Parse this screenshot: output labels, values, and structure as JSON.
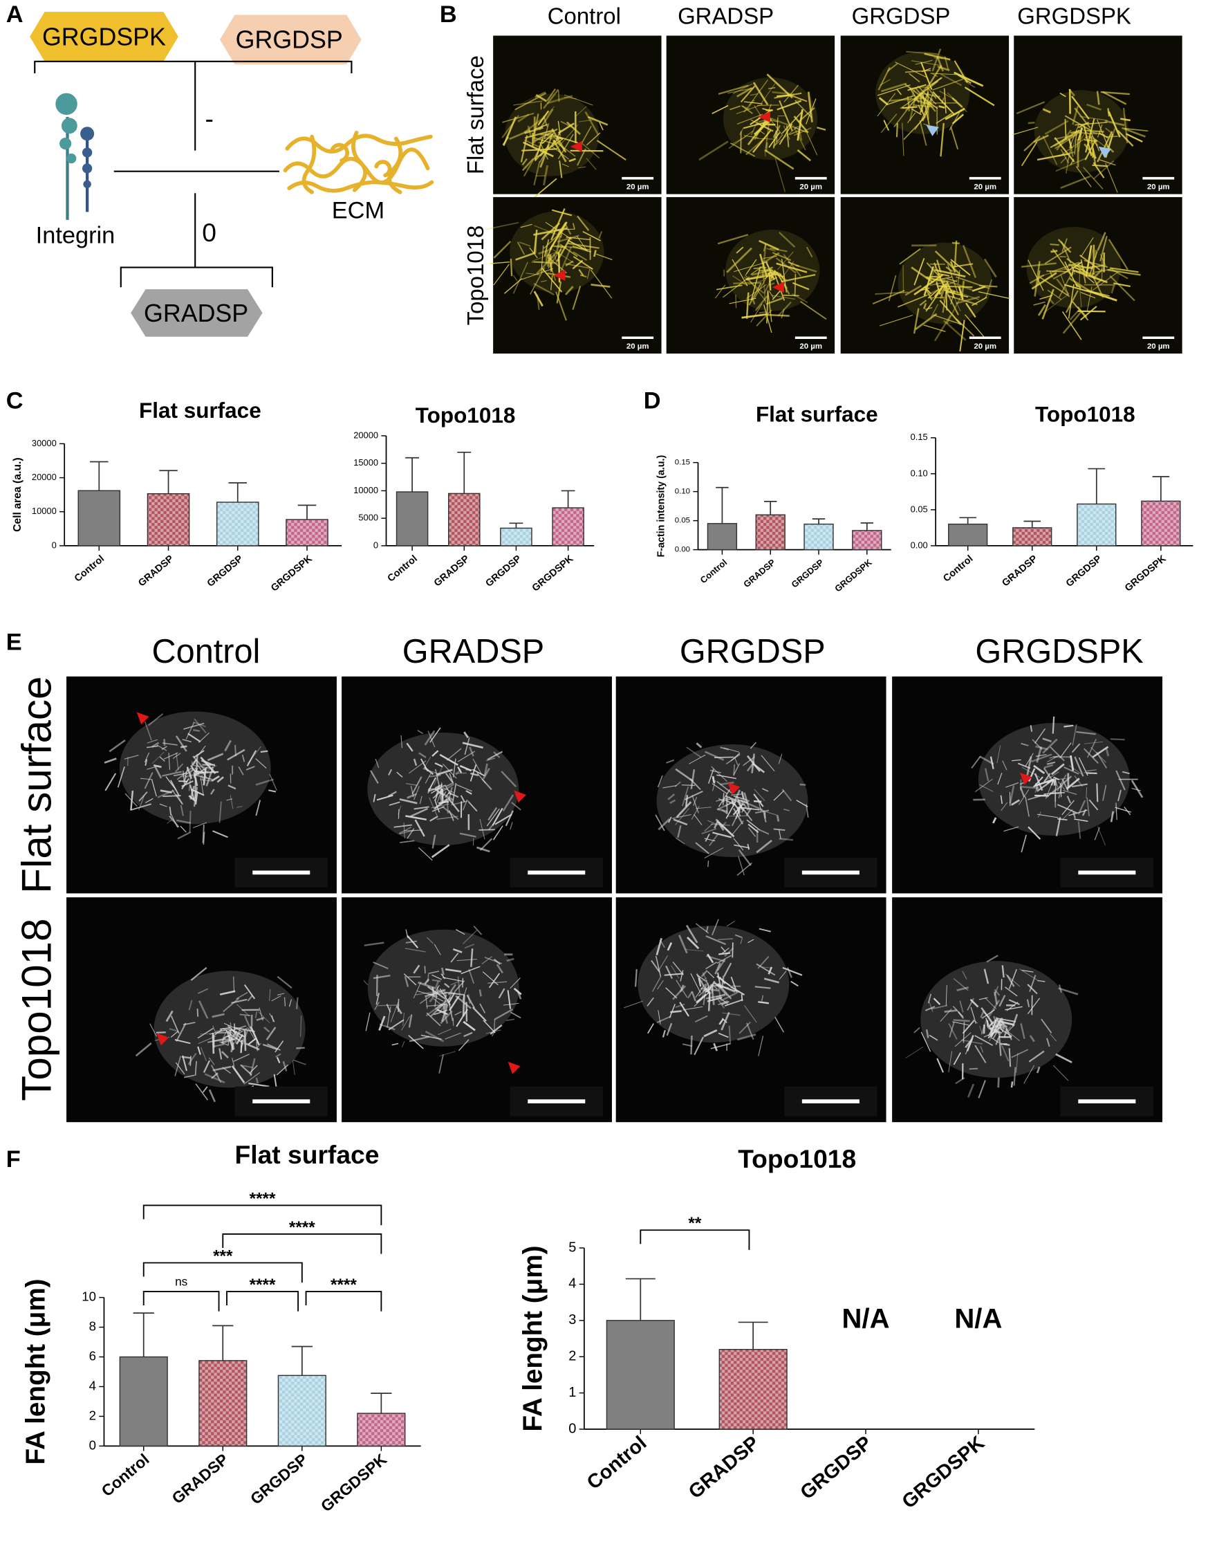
{
  "panel_labels": [
    "A",
    "B",
    "C",
    "D",
    "E",
    "F"
  ],
  "schematic": {
    "peptides": [
      "GRGDSPK",
      "GRGDSP",
      "GRADSP"
    ],
    "integrin": "Integrin",
    "ecm": "ECM",
    "effects": [
      "-",
      "0"
    ]
  },
  "panel_b": {
    "columns": [
      "Control",
      "GRADSP",
      "GRGDSP",
      "GRGDSPK"
    ],
    "rows": [
      "Flat surface",
      "Topo1018"
    ],
    "scale_bar": "20 µm"
  },
  "panel_e": {
    "columns": [
      "Control",
      "GRADSP",
      "GRGDSP",
      "GRGDSPK"
    ],
    "rows": [
      "Flat surface",
      "Topo1018"
    ]
  },
  "chart_data": [
    {
      "type": "bar",
      "title": "Flat surface",
      "ylabel": "Cell area (a.u.)",
      "categories": [
        "Control",
        "GRADSP",
        "GRGDSP",
        "GRGDSPK"
      ],
      "values": [
        16200,
        15300,
        12800,
        7700
      ],
      "errors": [
        8500,
        6800,
        5700,
        4200
      ],
      "colors": [
        "#808080",
        "#b35560",
        "#a9d3e4",
        "#c4668a"
      ],
      "patterns": [
        "solid",
        "checker",
        "checker",
        "checker"
      ],
      "ylim": [
        0,
        30000
      ],
      "yticks": [
        0,
        10000,
        20000,
        30000
      ]
    },
    {
      "type": "bar",
      "title": "Topo1018",
      "categories": [
        "Control",
        "GRADSP",
        "GRGDSP",
        "GRGDSPK"
      ],
      "values": [
        9800,
        9500,
        3200,
        6900
      ],
      "errors": [
        6200,
        7500,
        900,
        3100
      ],
      "colors": [
        "#808080",
        "#b35560",
        "#a9d3e4",
        "#c4668a"
      ],
      "patterns": [
        "solid",
        "checker",
        "checker",
        "checker"
      ],
      "ylim": [
        0,
        20000
      ],
      "yticks": [
        0,
        5000,
        10000,
        15000,
        20000
      ]
    },
    {
      "type": "bar",
      "title": "Flat surface",
      "ylabel": "F-actin intensity (a.u.)",
      "categories": [
        "Control",
        "GRADSP",
        "GRGDSP",
        "GRGDSPK"
      ],
      "values": [
        0.045,
        0.06,
        0.044,
        0.033
      ],
      "errors": [
        0.062,
        0.023,
        0.009,
        0.013
      ],
      "colors": [
        "#808080",
        "#b35560",
        "#a9d3e4",
        "#c4668a"
      ],
      "patterns": [
        "solid",
        "checker",
        "checker",
        "checker"
      ],
      "ylim": [
        0,
        0.15
      ],
      "yticks": [
        {
          "value": 0,
          "label": "0.00"
        },
        0.05,
        {
          "value": 0.1,
          "label": "0.10"
        },
        0.15
      ]
    },
    {
      "type": "bar",
      "title": "Topo1018",
      "categories": [
        "Control",
        "GRADSP",
        "GRGDSP",
        "GRGDSPK"
      ],
      "values": [
        0.03,
        0.025,
        0.058,
        0.062
      ],
      "errors": [
        0.009,
        0.009,
        0.049,
        0.034
      ],
      "colors": [
        "#808080",
        "#b35560",
        "#a9d3e4",
        "#c4668a"
      ],
      "patterns": [
        "solid",
        "checker",
        "checker",
        "checker"
      ],
      "ylim": [
        0,
        0.15
      ],
      "yticks": [
        {
          "value": 0,
          "label": "0.00"
        },
        0.05,
        {
          "value": 0.1,
          "label": "0.10"
        },
        0.15
      ]
    },
    {
      "type": "bar",
      "title": "Flat surface",
      "ylabel": "FA lenght (μm)",
      "categories": [
        "Control",
        "GRADSP",
        "GRGDSP",
        "GRGDSPK"
      ],
      "values": [
        6.0,
        5.75,
        4.75,
        2.2
      ],
      "errors": [
        2.95,
        2.35,
        1.95,
        1.35
      ],
      "colors": [
        "#808080",
        "#b35560",
        "#a9d3e4",
        "#c4668a"
      ],
      "patterns": [
        "solid",
        "checker",
        "checker",
        "checker"
      ],
      "ylim": [
        0,
        10
      ],
      "yticks": [
        0,
        2,
        4,
        6,
        8,
        10
      ],
      "annotations": [
        {
          "from": 0,
          "to": 1,
          "label": "ns"
        },
        {
          "from": 1,
          "to": 2,
          "label": "****"
        },
        {
          "from": 2,
          "to": 3,
          "label": "****"
        },
        {
          "from": 0,
          "to": 2,
          "label": "***"
        },
        {
          "from": 1,
          "to": 3,
          "label": "****"
        },
        {
          "from": 0,
          "to": 3,
          "label": "****"
        }
      ]
    },
    {
      "type": "bar",
      "title": "Topo1018",
      "ylabel": "FA lenght (μm)",
      "categories": [
        "Control",
        "GRADSP",
        "GRGDSP",
        "GRGDSPK"
      ],
      "values": [
        3.0,
        2.2,
        null,
        null
      ],
      "errors": [
        1.15,
        0.75,
        null,
        null
      ],
      "value_labels": [
        null,
        null,
        "N/A",
        "N/A"
      ],
      "colors": [
        "#808080",
        "#b35560",
        "#a9d3e4",
        "#c4668a"
      ],
      "patterns": [
        "solid",
        "checker",
        "checker",
        "checker"
      ],
      "ylim": [
        0,
        5
      ],
      "yticks": [
        0,
        1,
        2,
        3,
        4,
        5
      ],
      "annotations": [
        {
          "from": 0,
          "to": 1,
          "label": "**"
        }
      ]
    }
  ]
}
